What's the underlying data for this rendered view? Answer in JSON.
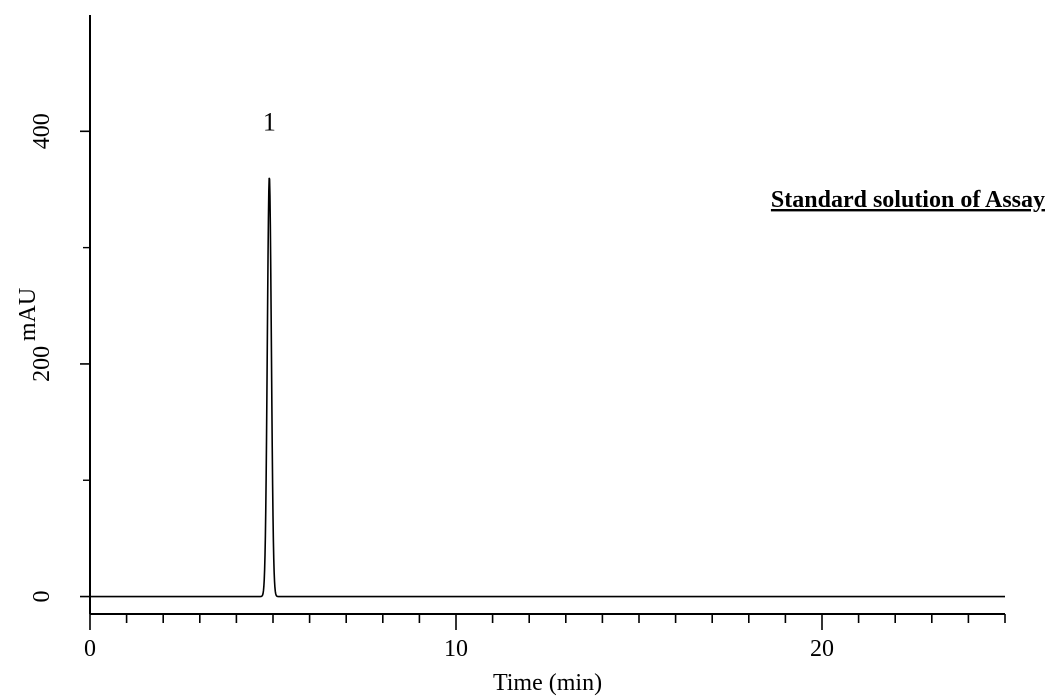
{
  "chart_data": {
    "type": "line",
    "title": "",
    "xlabel": "Time (min)",
    "ylabel": "mAU",
    "xlim": [
      0,
      25
    ],
    "ylim": [
      -15,
      500
    ],
    "x_major_ticks": [
      0,
      10,
      20
    ],
    "x_minor_step": 1,
    "y_major_ticks": [
      0,
      200,
      400
    ],
    "y_minor_ticks": [
      100,
      300
    ],
    "grid": false,
    "annotation": "Standard solution of Assay",
    "peaks": [
      {
        "label": "1",
        "retention_time": 4.9,
        "height": 361,
        "width_sigma": 0.055
      }
    ],
    "baseline": 0
  }
}
